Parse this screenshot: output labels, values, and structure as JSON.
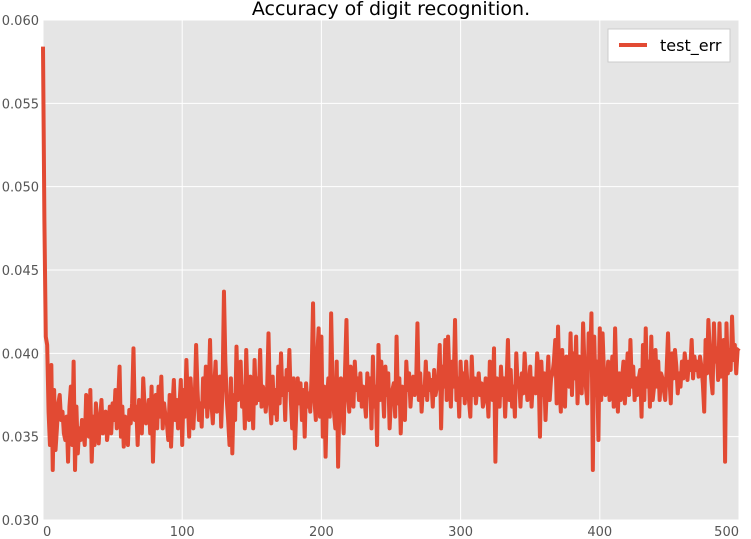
{
  "chart_data": {
    "type": "line",
    "title": "Accuracy of digit recognition.",
    "xlabel": "",
    "ylabel": "",
    "xlim": [
      0,
      500
    ],
    "ylim": [
      0.03,
      0.06
    ],
    "x_ticks": [
      "0",
      "100",
      "200",
      "300",
      "400",
      "500"
    ],
    "y_ticks": [
      "0.030",
      "0.035",
      "0.040",
      "0.045",
      "0.050",
      "0.055",
      "0.060"
    ],
    "grid": true,
    "legend_position": "top-right",
    "colors": {
      "background": "#e5e5e5",
      "grid": "#ffffff",
      "line": "#e24a33"
    },
    "series": [
      {
        "name": "test_err",
        "x_start": 0,
        "x_step": 1,
        "values": [
          0.0584,
          0.048,
          0.041,
          0.0405,
          0.0365,
          0.0345,
          0.0393,
          0.033,
          0.0378,
          0.0342,
          0.0355,
          0.037,
          0.0375,
          0.036,
          0.0365,
          0.0352,
          0.0348,
          0.0362,
          0.0335,
          0.0368,
          0.038,
          0.0345,
          0.0395,
          0.033,
          0.0368,
          0.034,
          0.0355,
          0.0348,
          0.036,
          0.0352,
          0.0345,
          0.0375,
          0.0365,
          0.035,
          0.0378,
          0.0335,
          0.0362,
          0.0345,
          0.037,
          0.0358,
          0.0346,
          0.036,
          0.0372,
          0.0352,
          0.0358,
          0.0365,
          0.0348,
          0.0355,
          0.0368,
          0.0352,
          0.037,
          0.036,
          0.0378,
          0.0355,
          0.0372,
          0.0392,
          0.035,
          0.0368,
          0.0344,
          0.0362,
          0.0355,
          0.0345,
          0.0366,
          0.0358,
          0.037,
          0.0403,
          0.036,
          0.0368,
          0.0345,
          0.0372,
          0.036,
          0.0352,
          0.0385,
          0.0368,
          0.0358,
          0.0362,
          0.0372,
          0.0352,
          0.038,
          0.0335,
          0.0365,
          0.0375,
          0.0355,
          0.038,
          0.0362,
          0.0386,
          0.0355,
          0.037,
          0.0362,
          0.0358,
          0.0348,
          0.0375,
          0.0344,
          0.0368,
          0.0384,
          0.036,
          0.0372,
          0.0355,
          0.0368,
          0.0384,
          0.0345,
          0.0378,
          0.0362,
          0.0396,
          0.0372,
          0.035,
          0.0385,
          0.0368,
          0.0355,
          0.0372,
          0.0405,
          0.0378,
          0.036,
          0.037,
          0.0356,
          0.0385,
          0.0368,
          0.0392,
          0.0362,
          0.0375,
          0.0408,
          0.037,
          0.0358,
          0.038,
          0.0395,
          0.0365,
          0.0372,
          0.0386,
          0.0356,
          0.038,
          0.0437,
          0.0395,
          0.0372,
          0.036,
          0.0345,
          0.0385,
          0.034,
          0.0375,
          0.036,
          0.0404,
          0.0372,
          0.0385,
          0.0395,
          0.0368,
          0.038,
          0.0355,
          0.0402,
          0.0372,
          0.036,
          0.0386,
          0.0378,
          0.0355,
          0.0396,
          0.037,
          0.0385,
          0.0372,
          0.0402,
          0.0368,
          0.038,
          0.0376,
          0.0365,
          0.0378,
          0.0412,
          0.0372,
          0.0358,
          0.0386,
          0.0364,
          0.0378,
          0.036,
          0.0392,
          0.037,
          0.04,
          0.0375,
          0.0385,
          0.036,
          0.039,
          0.0378,
          0.0402,
          0.0372,
          0.0355,
          0.0385,
          0.0343,
          0.0366,
          0.0385,
          0.037,
          0.0382,
          0.036,
          0.0378,
          0.035,
          0.0382,
          0.0368,
          0.0376,
          0.0365,
          0.0388,
          0.043,
          0.0372,
          0.036,
          0.0398,
          0.0415,
          0.0362,
          0.041,
          0.035,
          0.038,
          0.0338,
          0.0372,
          0.0385,
          0.0362,
          0.0424,
          0.038,
          0.0365,
          0.0355,
          0.0395,
          0.0332,
          0.0372,
          0.0385,
          0.0368,
          0.0352,
          0.039,
          0.042,
          0.0375,
          0.0365,
          0.0392,
          0.038,
          0.0368,
          0.0395,
          0.0378,
          0.0385,
          0.0372,
          0.0388,
          0.0368,
          0.038,
          0.0372,
          0.0362,
          0.0388,
          0.0375,
          0.0385,
          0.0355,
          0.0398,
          0.0368,
          0.038,
          0.0345,
          0.0405,
          0.0372,
          0.0395,
          0.038,
          0.0362,
          0.0392,
          0.0375,
          0.0388,
          0.0355,
          0.0372,
          0.0378,
          0.0382,
          0.0362,
          0.041,
          0.037,
          0.0385,
          0.0352,
          0.038,
          0.0372,
          0.036,
          0.0395,
          0.0378,
          0.0388,
          0.0368,
          0.0382,
          0.0386,
          0.0375,
          0.038,
          0.0418,
          0.0372,
          0.0388,
          0.0365,
          0.038,
          0.0375,
          0.0395,
          0.0372,
          0.0388,
          0.0378,
          0.0384,
          0.0368,
          0.039,
          0.0375,
          0.038,
          0.0385,
          0.0405,
          0.0355,
          0.0392,
          0.038,
          0.0408,
          0.0372,
          0.041,
          0.0385,
          0.0368,
          0.0395,
          0.038,
          0.042,
          0.0372,
          0.0385,
          0.0362,
          0.0395,
          0.0375,
          0.0388,
          0.037,
          0.0395,
          0.038,
          0.0372,
          0.0362,
          0.0398,
          0.0375,
          0.0385,
          0.037,
          0.038,
          0.0388,
          0.0375,
          0.0382,
          0.0368,
          0.0372,
          0.0385,
          0.0378,
          0.0362,
          0.0395,
          0.0385,
          0.0372,
          0.0403,
          0.0335,
          0.0385,
          0.0378,
          0.0368,
          0.0392,
          0.0375,
          0.0385,
          0.0362,
          0.0382,
          0.0408,
          0.0372,
          0.039,
          0.0368,
          0.038,
          0.0362,
          0.04,
          0.038,
          0.0385,
          0.0368,
          0.0388,
          0.0376,
          0.04,
          0.0384,
          0.0372,
          0.038,
          0.0392,
          0.0368,
          0.0385,
          0.0378,
          0.0376,
          0.04,
          0.039,
          0.035,
          0.0395,
          0.0375,
          0.0388,
          0.036,
          0.038,
          0.0398,
          0.0372,
          0.0385,
          0.0388,
          0.0395,
          0.0408,
          0.037,
          0.0416,
          0.038,
          0.0365,
          0.0402,
          0.038,
          0.0368,
          0.0398,
          0.0385,
          0.038,
          0.0412,
          0.0375,
          0.04,
          0.0385,
          0.041,
          0.037,
          0.0398,
          0.0385,
          0.0376,
          0.0418,
          0.0392,
          0.038,
          0.037,
          0.0412,
          0.0395,
          0.0424,
          0.033,
          0.041,
          0.0375,
          0.0395,
          0.0348,
          0.0415,
          0.0372,
          0.0412,
          0.0388,
          0.0375,
          0.038,
          0.0395,
          0.0372,
          0.0385,
          0.0398,
          0.0368,
          0.0415,
          0.038,
          0.0365,
          0.0388,
          0.0372,
          0.0385,
          0.0395,
          0.037,
          0.0385,
          0.04,
          0.0375,
          0.0408,
          0.038,
          0.0392,
          0.0372,
          0.0385,
          0.0375,
          0.0385,
          0.039,
          0.0362,
          0.0405,
          0.0372,
          0.0415,
          0.038,
          0.0395,
          0.0368,
          0.041,
          0.0372,
          0.038,
          0.0402,
          0.038,
          0.0395,
          0.0372,
          0.0388,
          0.0385,
          0.0378,
          0.0372,
          0.039,
          0.0412,
          0.0385,
          0.037,
          0.04,
          0.0385,
          0.0402,
          0.0392,
          0.0376,
          0.0388,
          0.038,
          0.0395,
          0.0385,
          0.04,
          0.0392,
          0.0384,
          0.0395,
          0.039,
          0.0408,
          0.0385,
          0.0398,
          0.039,
          0.0395,
          0.0386,
          0.0398,
          0.0392,
          0.0382,
          0.0365,
          0.0408,
          0.0388,
          0.042,
          0.0402,
          0.0385,
          0.0376,
          0.0418,
          0.0395,
          0.0403,
          0.0384,
          0.0418,
          0.0386,
          0.0398,
          0.0408,
          0.0335,
          0.0418,
          0.0388,
          0.0402,
          0.039,
          0.0422,
          0.0396,
          0.0405,
          0.0388,
          0.0402,
          0.0403
        ]
      }
    ]
  }
}
